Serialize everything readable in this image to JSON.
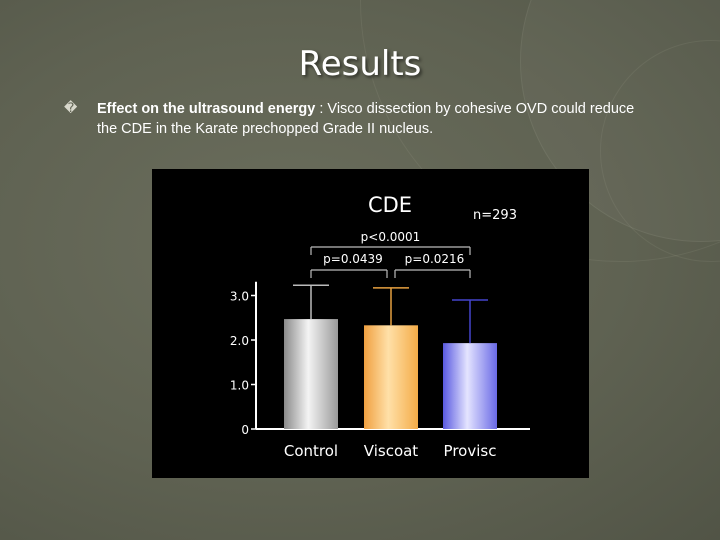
{
  "slide": {
    "title": "Results",
    "bullet_glyph": "�",
    "bullet_bold": "Effect on the ultrasound energy",
    "bullet_rest": " : Visco dissection by cohesive OVD could reduce the CDE in the Karate prechopped Grade II nucleus."
  },
  "chart_data": {
    "type": "bar",
    "title": "CDE",
    "annotation_n": "n=293",
    "categories": [
      "Control",
      "Viscoat",
      "Provisc"
    ],
    "values": [
      2.47,
      2.33,
      1.93
    ],
    "error_upper": [
      3.23,
      3.17,
      2.9
    ],
    "colors": [
      "#d0d0d0",
      "#ffbf5a",
      "#8888ee"
    ],
    "ylim": [
      0,
      3.4
    ],
    "yticks": [
      0,
      1.0,
      2.0,
      3.0
    ],
    "ytick_labels": [
      "0",
      "1.0",
      "2.0",
      "3.0"
    ],
    "comparisons": [
      {
        "label": "p<0.0001",
        "from": "Control",
        "to": "Provisc"
      },
      {
        "label": "p=0.0439",
        "from": "Control",
        "to": "Viscoat"
      },
      {
        "label": "p=0.0216",
        "from": "Viscoat",
        "to": "Provisc"
      }
    ]
  }
}
